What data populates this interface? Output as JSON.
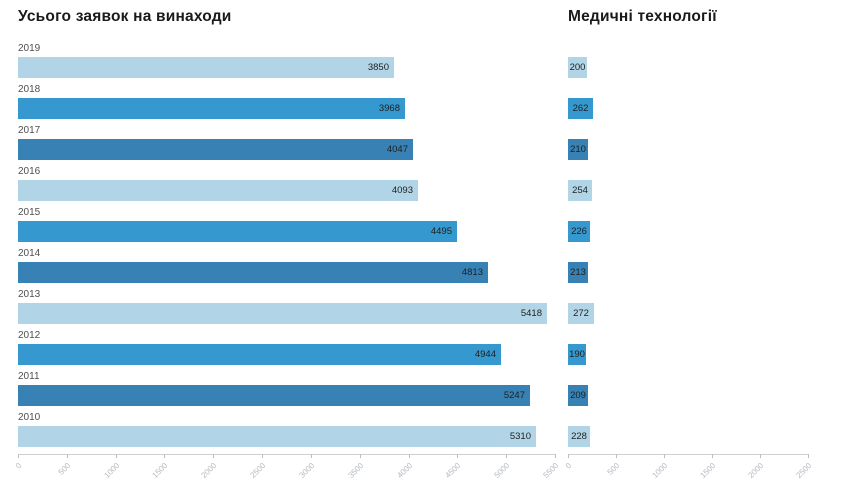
{
  "titles": {
    "left": "Усього заявок на винаходи",
    "right": "Медичні технології"
  },
  "colors": {
    "light": "#b1d5e7",
    "medium": "#3598cf",
    "dark": "#3781b4",
    "axis_line": "#cfcfcf",
    "tick_label": "#b4bac0",
    "year_label": "#4f4f4f",
    "value_label": "#1f1f1f",
    "title": "#1a1a1a"
  },
  "palette_pattern": [
    "light",
    "medium",
    "dark"
  ],
  "chart_data": [
    {
      "type": "bar",
      "orientation": "horizontal",
      "title": "Усього заявок на винаходи",
      "categories": [
        "2019",
        "2018",
        "2017",
        "2016",
        "2015",
        "2014",
        "2013",
        "2012",
        "2011",
        "2010"
      ],
      "values": [
        3850,
        3968,
        4047,
        4093,
        4495,
        4813,
        5418,
        4944,
        5247,
        5310
      ],
      "value_labels": [
        "3850",
        "3968",
        "4047",
        "4093",
        "4495",
        "4813",
        "5418",
        "4944",
        "5247",
        "5310"
      ],
      "xlim": [
        0,
        5500
      ],
      "xticks": [
        0,
        500,
        1000,
        1500,
        2000,
        2500,
        3000,
        3500,
        4000,
        4500,
        5000,
        5500
      ],
      "grid": false,
      "legend": null
    },
    {
      "type": "bar",
      "orientation": "horizontal",
      "title": "Медичні технології",
      "categories": [
        "2019",
        "2018",
        "2017",
        "2016",
        "2015",
        "2014",
        "2013",
        "2012",
        "2011",
        "2010"
      ],
      "values": [
        200,
        262,
        210,
        254,
        226,
        213,
        272,
        190,
        209,
        228
      ],
      "value_labels": [
        "200",
        "262",
        "210",
        "254",
        "226",
        "213",
        "272",
        "190",
        "209",
        "228"
      ],
      "xlim": [
        0,
        2500
      ],
      "xticks": [
        0,
        500,
        1000,
        1500,
        2000,
        2500
      ],
      "grid": false,
      "legend": null
    }
  ]
}
